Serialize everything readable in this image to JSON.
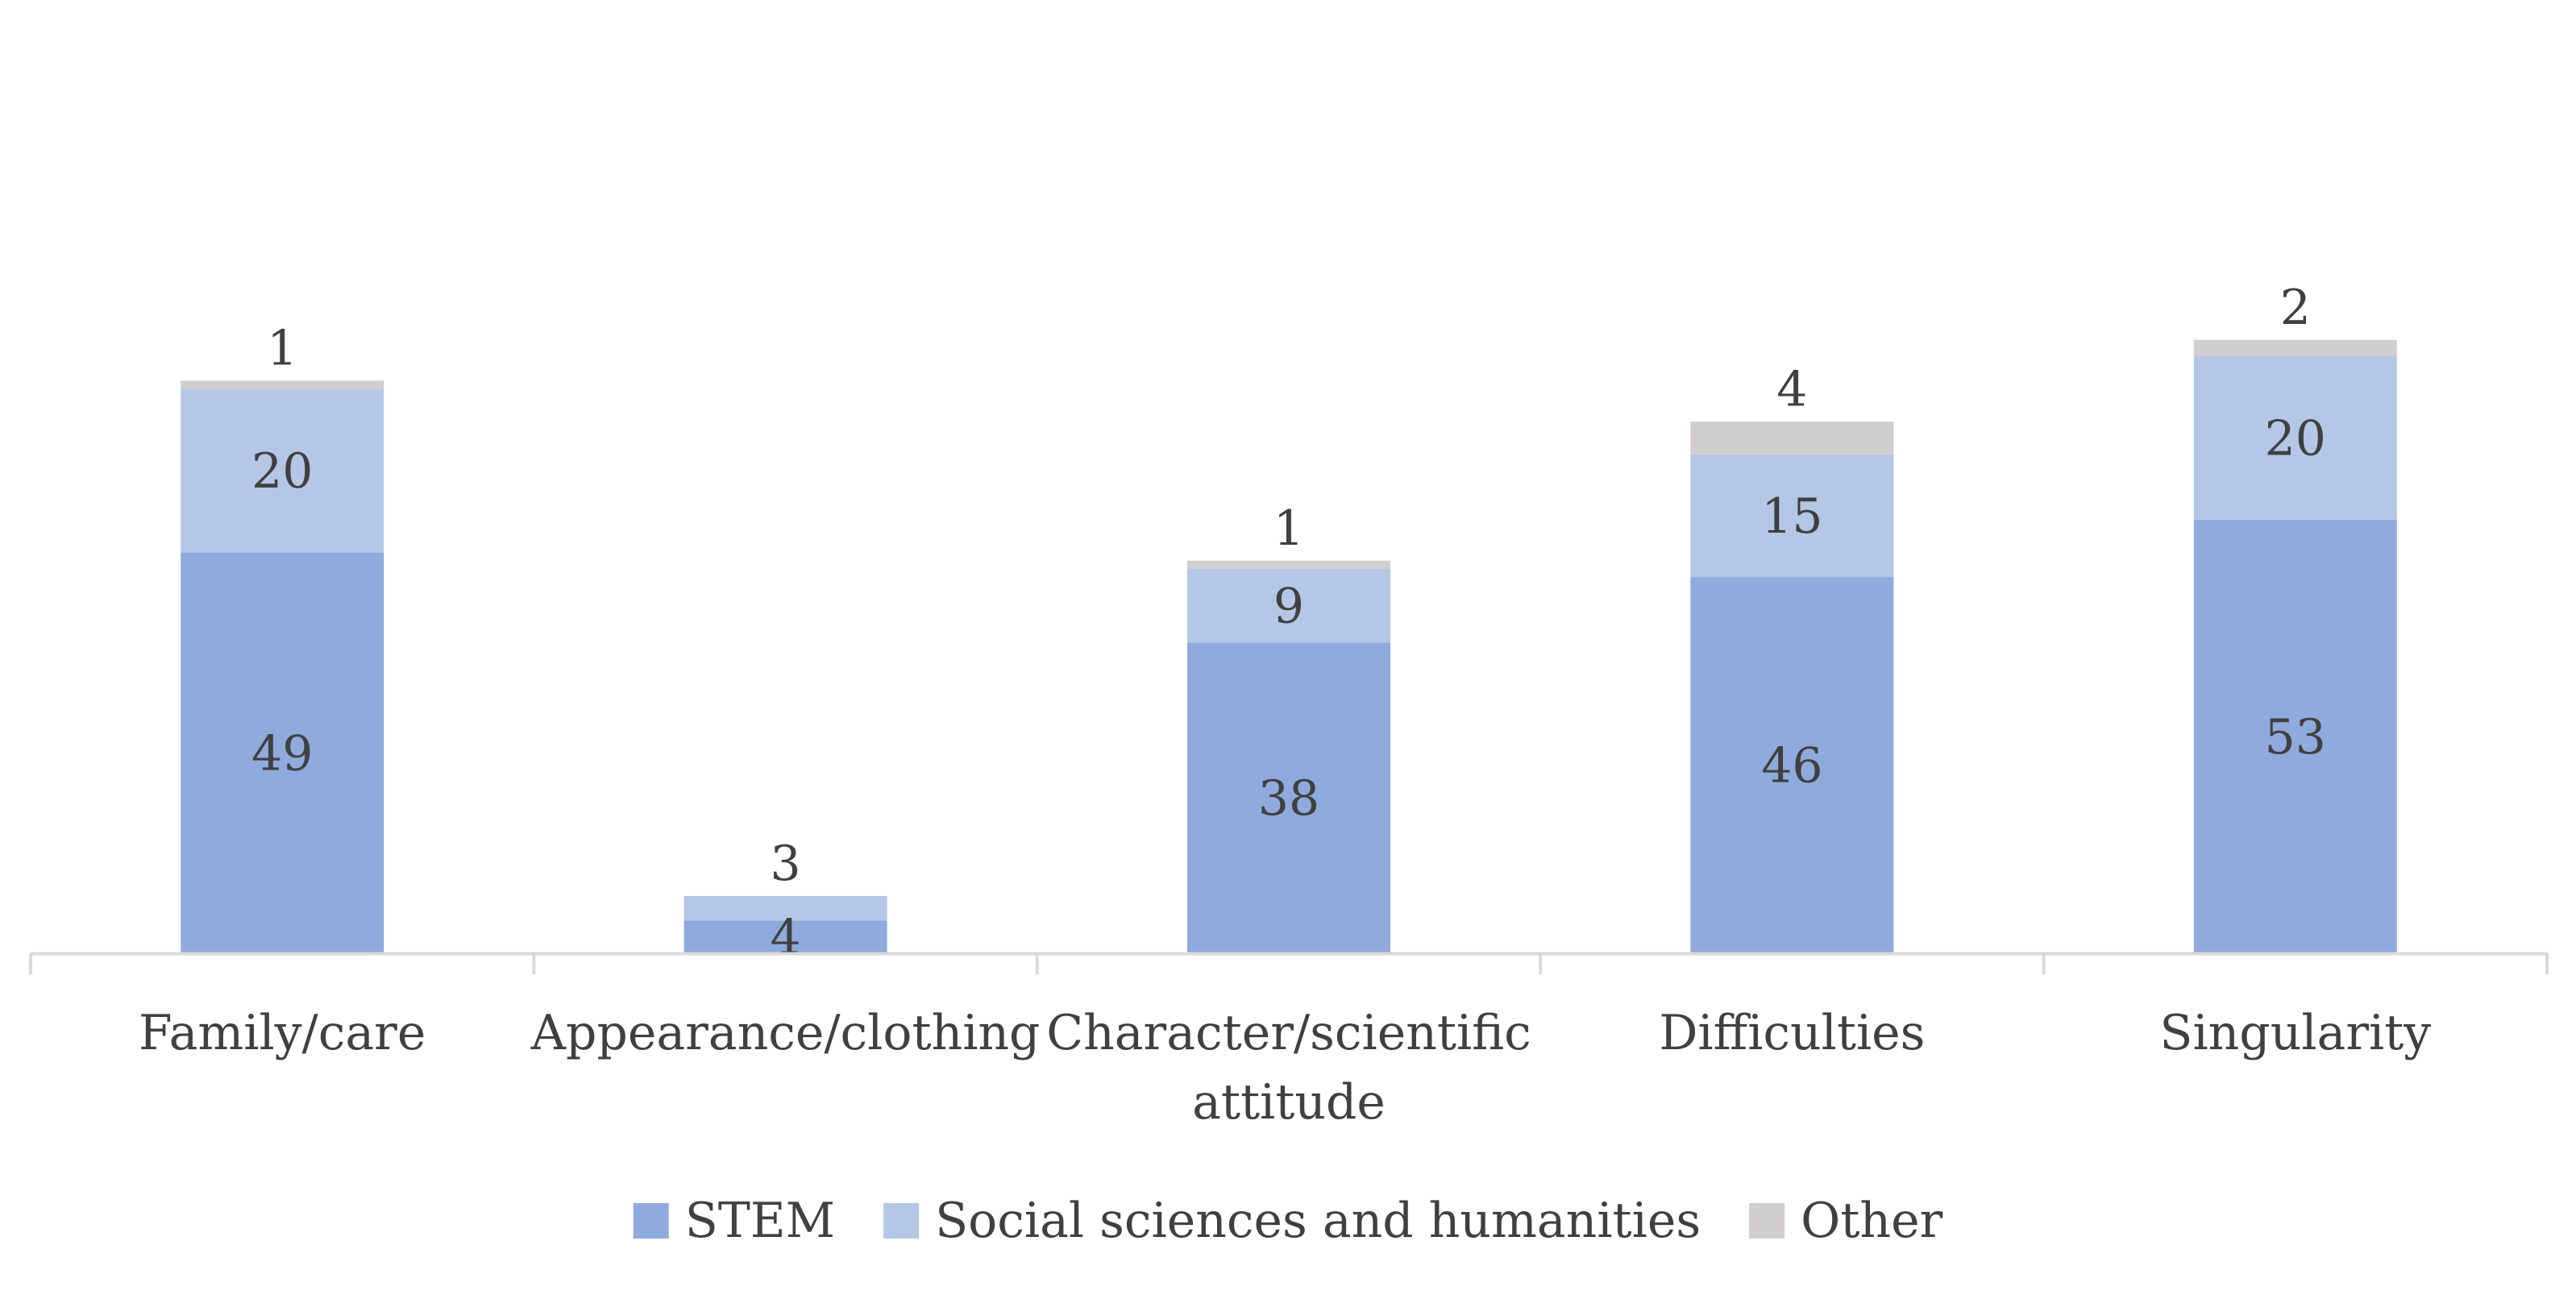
{
  "chart_data": {
    "type": "bar",
    "stacked": true,
    "categories": [
      "Family/care",
      "Appearance/clothing",
      "Character/scientific attitude",
      "Difficulties",
      "Singularity"
    ],
    "category_lines": [
      [
        "Family/care"
      ],
      [
        "Appearance/clothing"
      ],
      [
        "Character/scientific",
        "attitude"
      ],
      [
        "Difficulties"
      ],
      [
        "Singularity"
      ]
    ],
    "series": [
      {
        "name": "STEM",
        "values": [
          49,
          4,
          38,
          46,
          53
        ],
        "color": "#8faadc"
      },
      {
        "name": "Social sciences and humanities",
        "values": [
          20,
          3,
          9,
          15,
          20
        ],
        "color": "#b4c7e7"
      },
      {
        "name": "Other",
        "values": [
          1,
          0,
          1,
          4,
          2
        ],
        "color": "#d0cece"
      }
    ],
    "ylim": [
      0,
      75
    ],
    "grid": false,
    "legend_position": "bottom",
    "axis_color": "#d9d9d9",
    "label_color": "#404040",
    "title": "",
    "xlabel": "",
    "ylabel": ""
  }
}
